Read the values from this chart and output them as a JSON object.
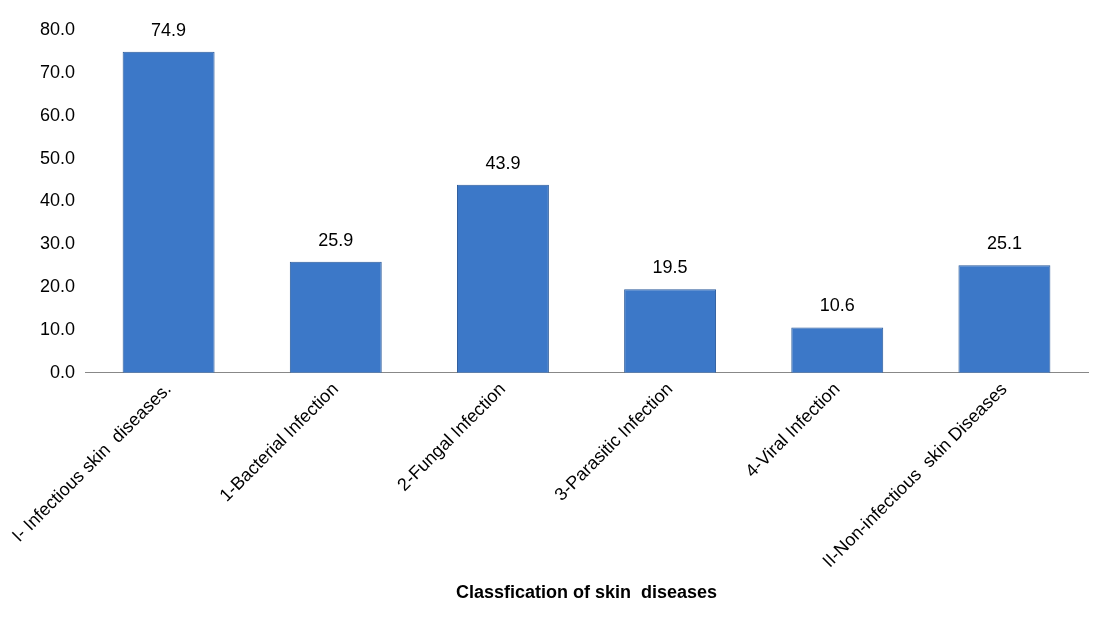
{
  "chart_data": {
    "type": "bar",
    "xlabel": "Classfication of skin  diseases",
    "categories": [
      "I- Infectious skin  diseases.",
      "1-Bacterial Infection",
      "2-Fungal Infection",
      "3-Parasitic Infection",
      "4-Viral Infection",
      "II-Non-infectious  skin Diseases"
    ],
    "values": [
      74.9,
      25.9,
      43.9,
      19.5,
      10.6,
      25.1
    ],
    "color": "#3c78c8",
    "ylim": [
      0,
      80
    ],
    "yticks": [
      {
        "value": 0,
        "label": "0.0"
      },
      {
        "value": 10,
        "label": "10.0"
      },
      {
        "value": 20,
        "label": "20.0"
      },
      {
        "value": 30,
        "label": "30.0"
      },
      {
        "value": 40,
        "label": "40.0"
      },
      {
        "value": 50,
        "label": "50.0"
      },
      {
        "value": 60,
        "label": "60.0"
      },
      {
        "value": 70,
        "label": "70.0"
      },
      {
        "value": 80,
        "label": "80.0"
      }
    ],
    "data_labels": true,
    "grid": false,
    "legend": false
  }
}
